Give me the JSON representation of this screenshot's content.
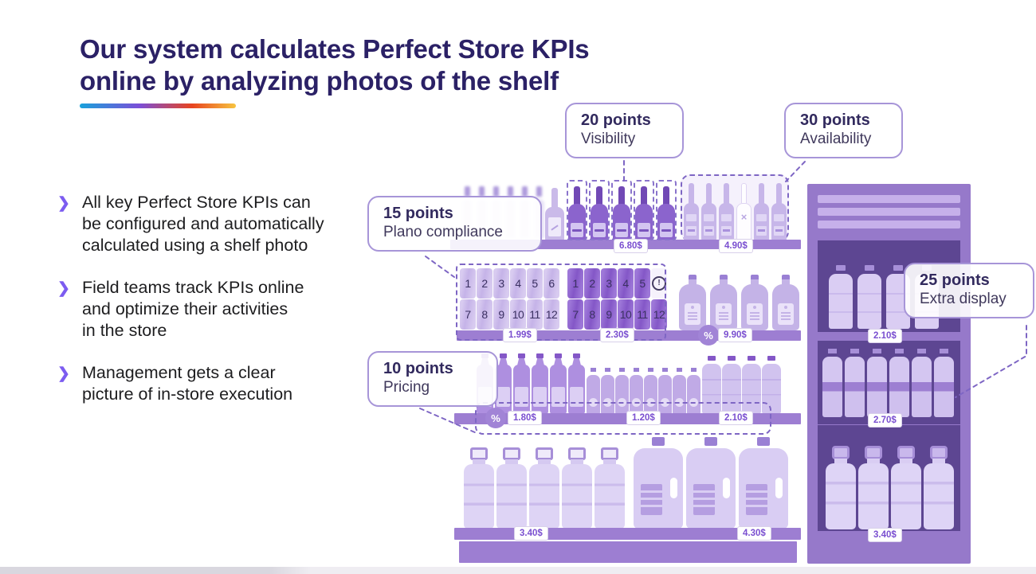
{
  "title": "Our system calculates Perfect Store KPIs\nonline by analyzing photos of the shelf",
  "accent_bar_gradient": [
    "#18a2db",
    "#7a4fd8",
    "#e8441f",
    "#f7c440"
  ],
  "bullets": [
    "All key Perfect Store KPIs can\nbe configured and automatically\ncalculated using a shelf photo",
    "Field teams track KPIs online\nand optimize their activities\nin the store",
    "Management gets a clear\npicture of in-store execution"
  ],
  "icons": {
    "bullet": "❯",
    "promo": "%",
    "missing": "×",
    "alert": "!"
  },
  "kpis": [
    {
      "points": "20 points",
      "label": "Visibility"
    },
    {
      "points": "30 points",
      "label": "Availability"
    },
    {
      "points": "15 points",
      "label": "Plano compliance"
    },
    {
      "points": "25 points",
      "label": "Extra display"
    },
    {
      "points": "10 points",
      "label": "Pricing"
    }
  ],
  "prices": {
    "top_visibility": "6.80$",
    "top_availability": "4.90$",
    "shelf2_group1": "1.99$",
    "shelf2_group2": "2.30$",
    "shelf2_flasks": "9.90$",
    "shelf3_soda": "1.80$",
    "shelf3_small": "1.20$",
    "shelf3_tall": "2.10$",
    "shelf4_jugs": "3.40$",
    "shelf4_gallons": "4.30$",
    "cooler_shelf1": "2.10$",
    "cooler_shelf2": "2.70$",
    "cooler_shelf3": "3.40$"
  },
  "planogram": {
    "group1_top": [
      "1",
      "2",
      "3",
      "4",
      "5",
      "6"
    ],
    "group1_bottom": [
      "7",
      "8",
      "9",
      "10",
      "11",
      "12"
    ],
    "group2_top": [
      "1",
      "2",
      "3",
      "4",
      "5"
    ],
    "group2_bottom": [
      "7",
      "8",
      "9",
      "10",
      "11",
      "12"
    ]
  },
  "counts": {
    "faded_bottles": 6,
    "visibility_bottles": 5,
    "availability_bottles": 6,
    "availability_missing_index": 3,
    "flasks": 4,
    "soda": 6,
    "small": 8,
    "tall": 4,
    "jugs": 5,
    "gallons": 3,
    "cooler_header_bars": 3,
    "cooler_shelf1": 4,
    "cooler_shelf2": 6,
    "cooler_shelf3": 4
  },
  "colors": {
    "title": "#2b2166",
    "accent_purple": "#7c5cf0",
    "shelf_bar": "#9d7ed2",
    "cooler_body": "#9679ca",
    "cooler_inner": "#5d4692",
    "price_text": "#7a4fd0",
    "dash_line": "#7e66c4"
  }
}
